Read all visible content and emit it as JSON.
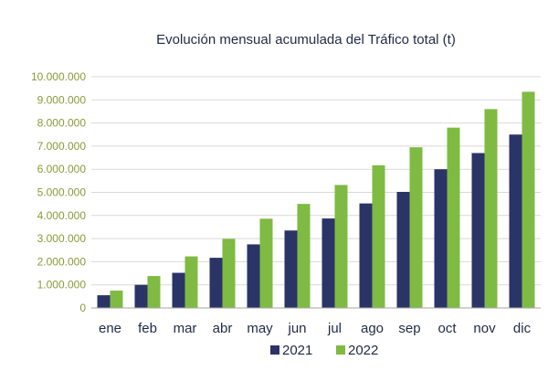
{
  "chart_data": {
    "type": "bar",
    "title": "Evolución mensual acumulada del Tráfico total (t)",
    "categories": [
      "ene",
      "feb",
      "mar",
      "abr",
      "may",
      "jun",
      "jul",
      "ago",
      "sep",
      "oct",
      "nov",
      "dic"
    ],
    "series": [
      {
        "name": "2021",
        "color": "#2b3467",
        "values": [
          550000,
          1000000,
          1520000,
          2170000,
          2750000,
          3350000,
          3870000,
          4520000,
          5020000,
          6000000,
          6700000,
          7500000
        ]
      },
      {
        "name": "2022",
        "color": "#7fba42",
        "values": [
          750000,
          1380000,
          2230000,
          2990000,
          3860000,
          4500000,
          5320000,
          6170000,
          6950000,
          7800000,
          8600000,
          9350000
        ]
      }
    ],
    "ylim": [
      0,
      10000000
    ],
    "yticks": [
      "0",
      "1.000.000",
      "2.000.000",
      "3.000.000",
      "4.000.000",
      "5.000.000",
      "6.000.000",
      "7.000.000",
      "8.000.000",
      "9.000.000",
      "10.000.000"
    ],
    "grid": true,
    "legend_position": "bottom"
  }
}
